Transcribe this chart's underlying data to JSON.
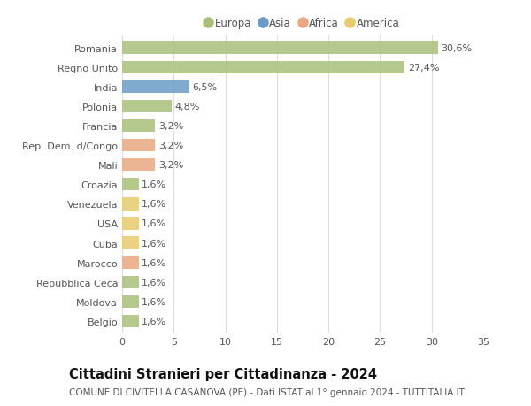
{
  "categories": [
    "Romania",
    "Regno Unito",
    "India",
    "Polonia",
    "Francia",
    "Rep. Dem. d/Congo",
    "Mali",
    "Croazia",
    "Venezuela",
    "USA",
    "Cuba",
    "Marocco",
    "Repubblica Ceca",
    "Moldova",
    "Belgio"
  ],
  "values": [
    30.6,
    27.4,
    6.5,
    4.8,
    3.2,
    3.2,
    3.2,
    1.6,
    1.6,
    1.6,
    1.6,
    1.6,
    1.6,
    1.6,
    1.6
  ],
  "labels": [
    "30,6%",
    "27,4%",
    "6,5%",
    "4,8%",
    "3,2%",
    "3,2%",
    "3,2%",
    "1,6%",
    "1,6%",
    "1,6%",
    "1,6%",
    "1,6%",
    "1,6%",
    "1,6%",
    "1,6%"
  ],
  "bar_colors": [
    "#a8c07a",
    "#a8c07a",
    "#6b9bc7",
    "#a8c07a",
    "#a8c07a",
    "#e8a882",
    "#e8a882",
    "#a8c07a",
    "#e8c96e",
    "#e8c96e",
    "#e8c96e",
    "#e8a882",
    "#a8c07a",
    "#a8c07a",
    "#a8c07a"
  ],
  "continent_colors": {
    "Europa": "#a8c07a",
    "Asia": "#6b9bc7",
    "Africa": "#e8a882",
    "America": "#e8c96e"
  },
  "legend_labels": [
    "Europa",
    "Asia",
    "Africa",
    "America"
  ],
  "title": "Cittadini Stranieri per Cittadinanza - 2024",
  "subtitle": "COMUNE DI CIVITELLA CASANOVA (PE) - Dati ISTAT al 1° gennaio 2024 - TUTTITALIA.IT",
  "xlim": [
    0,
    35
  ],
  "xticks": [
    0,
    5,
    10,
    15,
    20,
    25,
    30,
    35
  ],
  "background_color": "#ffffff",
  "grid_color": "#dddddd",
  "bar_height": 0.65,
  "title_fontsize": 10.5,
  "subtitle_fontsize": 7.5,
  "tick_fontsize": 8,
  "label_fontsize": 8,
  "legend_fontsize": 8.5
}
